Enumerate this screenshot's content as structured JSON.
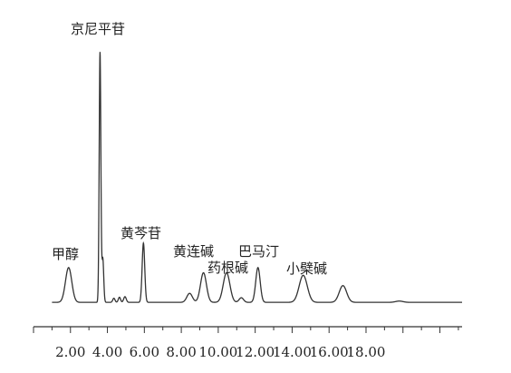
{
  "chart_data": {
    "type": "line",
    "title": "",
    "xlabel": "",
    "ylabel": "",
    "xlim": [
      0,
      23.2
    ],
    "ylim": [
      0,
      100
    ],
    "grid": false,
    "legend": "none",
    "x_ticks": [
      {
        "value": 2.0,
        "label": "2.00"
      },
      {
        "value": 4.0,
        "label": "4.00"
      },
      {
        "value": 6.0,
        "label": "6.00"
      },
      {
        "value": 8.0,
        "label": "8.00"
      },
      {
        "value": 10.0,
        "label": "10.00"
      },
      {
        "value": 12.0,
        "label": "12.00"
      },
      {
        "value": 14.0,
        "label": "14.00"
      },
      {
        "value": 16.0,
        "label": "16.00"
      },
      {
        "value": 18.0,
        "label": "18.00"
      }
    ],
    "baseline": 1.0,
    "peaks": [
      {
        "name": "甲醇",
        "rt": 1.9,
        "height": 13.5,
        "width": 0.17
      },
      {
        "name": "京尼平苷",
        "rt": 3.6,
        "height": 97.0,
        "width": 0.045
      },
      {
        "name": "",
        "rt": 3.75,
        "height": 17.0,
        "width": 0.05
      },
      {
        "name": "",
        "rt": 4.35,
        "height": 1.6,
        "width": 0.06
      },
      {
        "name": "",
        "rt": 4.65,
        "height": 2.0,
        "width": 0.06
      },
      {
        "name": "",
        "rt": 4.95,
        "height": 2.2,
        "width": 0.07
      },
      {
        "name": "黄芩苷",
        "rt": 5.95,
        "height": 23.0,
        "width": 0.07
      },
      {
        "name": "",
        "rt": 8.45,
        "height": 3.5,
        "width": 0.15
      },
      {
        "name": "黄连碱",
        "rt": 9.2,
        "height": 11.5,
        "width": 0.16
      },
      {
        "name": "药根碱",
        "rt": 10.45,
        "height": 11.5,
        "width": 0.18
      },
      {
        "name": "",
        "rt": 11.25,
        "height": 1.8,
        "width": 0.12
      },
      {
        "name": "巴马汀",
        "rt": 12.15,
        "height": 13.5,
        "width": 0.12
      },
      {
        "name": "小檗碱",
        "rt": 14.6,
        "height": 10.5,
        "width": 0.22
      },
      {
        "name": "",
        "rt": 16.75,
        "height": 6.5,
        "width": 0.2
      },
      {
        "name": "",
        "rt": 19.8,
        "height": 0.5,
        "width": 0.2
      }
    ]
  }
}
